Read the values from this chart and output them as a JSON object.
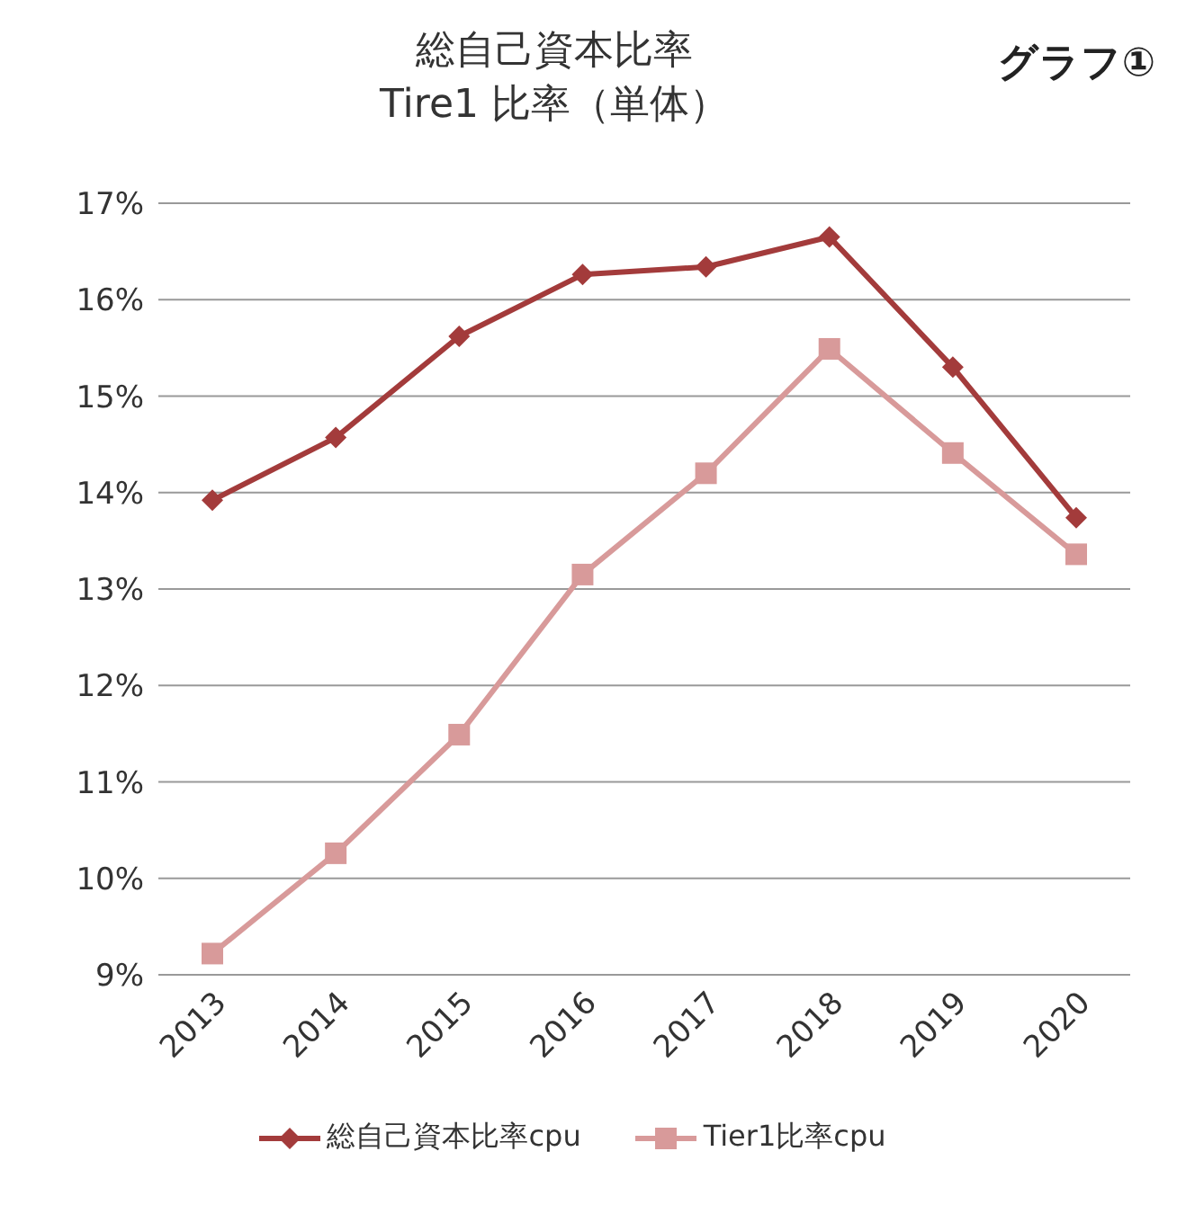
{
  "chart_data": {
    "type": "line",
    "title": "総自己資本比率\nTire1 比率（単体）",
    "annotations": [
      "グラフ①"
    ],
    "categories": [
      "2013",
      "2014",
      "2015",
      "2016",
      "2017",
      "2018",
      "2019",
      "2020"
    ],
    "series": [
      {
        "name": "総自己資本比率cpu",
        "color": "#a33b3b",
        "marker": "diamond",
        "values": [
          13.92,
          14.57,
          15.62,
          16.26,
          16.34,
          16.65,
          15.3,
          13.74
        ]
      },
      {
        "name": "Tier1比率cpu",
        "color": "#d89a9a",
        "marker": "square",
        "values": [
          9.22,
          10.26,
          11.49,
          13.15,
          14.2,
          15.49,
          14.41,
          13.36
        ]
      }
    ],
    "ylim": [
      9,
      17
    ],
    "yticks": [
      {
        "value": 9,
        "label": "9%"
      },
      {
        "value": 10,
        "label": "10%"
      },
      {
        "value": 11,
        "label": "11%"
      },
      {
        "value": 12,
        "label": "12%"
      },
      {
        "value": 13,
        "label": "13%"
      },
      {
        "value": 14,
        "label": "14%"
      },
      {
        "value": 15,
        "label": "15%"
      },
      {
        "value": 16,
        "label": "16%"
      },
      {
        "value": 17,
        "label": "17%"
      }
    ],
    "grid": "y",
    "legend": "bottom"
  }
}
